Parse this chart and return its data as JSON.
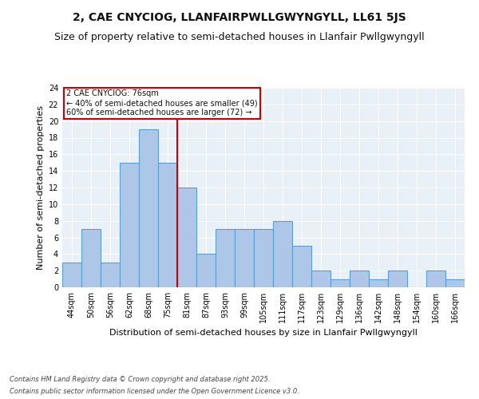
{
  "title": "2, CAE CNYCIOG, LLANFAIRPWLLGWYNGYLL, LL61 5JS",
  "subtitle": "Size of property relative to semi-detached houses in Llanfair Pwllgwyngyll",
  "xlabel": "Distribution of semi-detached houses by size in Llanfair Pwllgwyngyll",
  "ylabel": "Number of semi-detached properties",
  "footer_line1": "Contains HM Land Registry data © Crown copyright and database right 2025.",
  "footer_line2": "Contains public sector information licensed under the Open Government Licence v3.0.",
  "categories": [
    "44sqm",
    "50sqm",
    "56sqm",
    "62sqm",
    "68sqm",
    "75sqm",
    "81sqm",
    "87sqm",
    "93sqm",
    "99sqm",
    "105sqm",
    "111sqm",
    "117sqm",
    "123sqm",
    "129sqm",
    "136sqm",
    "142sqm",
    "148sqm",
    "154sqm",
    "160sqm",
    "166sqm"
  ],
  "values": [
    3,
    7,
    3,
    15,
    19,
    15,
    12,
    4,
    7,
    7,
    7,
    8,
    5,
    2,
    1,
    2,
    1,
    2,
    0,
    2,
    1
  ],
  "bar_color": "#aec6e8",
  "bar_edge_color": "#5a9fd4",
  "vline_color": "#cc0000",
  "annotation_text": "2 CAE CNYCIOG: 76sqm\n← 40% of semi-detached houses are smaller (49)\n60% of semi-detached houses are larger (72) →",
  "annotation_box_color": "#cc0000",
  "ylim": [
    0,
    24
  ],
  "yticks": [
    0,
    2,
    4,
    6,
    8,
    10,
    12,
    14,
    16,
    18,
    20,
    22,
    24
  ],
  "bg_color": "#e8f0f8",
  "title_fontsize": 10,
  "subtitle_fontsize": 9,
  "label_fontsize": 8,
  "tick_fontsize": 7,
  "footer_fontsize": 6,
  "annotation_fontsize": 7
}
